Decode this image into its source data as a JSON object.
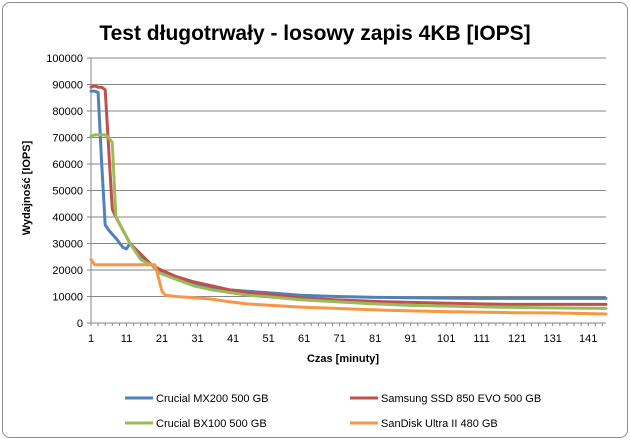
{
  "chart_data": {
    "type": "line",
    "title": "Test długotrwały - losowy zapis 4KB [IOPS]",
    "xlabel": "Czas [minuty]",
    "ylabel": "Wydajność [IOPS]",
    "xlim": [
      1,
      146
    ],
    "ylim": [
      0,
      100000
    ],
    "x_ticks": [
      "1",
      "11",
      "21",
      "31",
      "41",
      "51",
      "61",
      "71",
      "81",
      "91",
      "101",
      "111",
      "121",
      "131",
      "141"
    ],
    "y_ticks": [
      "0",
      "10000",
      "20000",
      "30000",
      "40000",
      "50000",
      "60000",
      "70000",
      "80000",
      "90000",
      "100000"
    ],
    "grid": "horizontal",
    "legend_position": "bottom",
    "series": [
      {
        "name": "Crucial MX200 500 GB",
        "color": "#4f81bd",
        "points": [
          [
            1,
            87500
          ],
          [
            2,
            87500
          ],
          [
            3,
            87000
          ],
          [
            4,
            60000
          ],
          [
            5,
            37000
          ],
          [
            6,
            35000
          ],
          [
            8,
            32000
          ],
          [
            10,
            28500
          ],
          [
            11,
            28000
          ],
          [
            12,
            30000
          ],
          [
            13,
            28500
          ],
          [
            15,
            25000
          ],
          [
            18,
            22000
          ],
          [
            20,
            20000
          ],
          [
            25,
            17000
          ],
          [
            30,
            15000
          ],
          [
            35,
            13500
          ],
          [
            40,
            12500
          ],
          [
            45,
            12000
          ],
          [
            50,
            11500
          ],
          [
            60,
            10500
          ],
          [
            70,
            10000
          ],
          [
            80,
            9700
          ],
          [
            90,
            9500
          ],
          [
            100,
            9400
          ],
          [
            110,
            9300
          ],
          [
            120,
            9300
          ],
          [
            130,
            9300
          ],
          [
            146,
            9300
          ]
        ]
      },
      {
        "name": "Samsung SSD 850 EVO 500 GB",
        "color": "#c0504d",
        "points": [
          [
            1,
            89000
          ],
          [
            2,
            89500
          ],
          [
            3,
            89000
          ],
          [
            4,
            89000
          ],
          [
            5,
            88000
          ],
          [
            6,
            65000
          ],
          [
            7,
            43000
          ],
          [
            8,
            40000
          ],
          [
            10,
            35000
          ],
          [
            12,
            30000
          ],
          [
            15,
            26000
          ],
          [
            18,
            22000
          ],
          [
            20,
            20500
          ],
          [
            25,
            17500
          ],
          [
            30,
            15500
          ],
          [
            35,
            14000
          ],
          [
            40,
            12500
          ],
          [
            45,
            11500
          ],
          [
            50,
            11000
          ],
          [
            60,
            9500
          ],
          [
            70,
            8700
          ],
          [
            80,
            8200
          ],
          [
            90,
            7800
          ],
          [
            100,
            7500
          ],
          [
            110,
            7200
          ],
          [
            120,
            7000
          ],
          [
            130,
            7000
          ],
          [
            146,
            7000
          ]
        ]
      },
      {
        "name": "Crucial BX100 500 GB",
        "color": "#9bbb59",
        "points": [
          [
            1,
            70500
          ],
          [
            2,
            71000
          ],
          [
            3,
            71000
          ],
          [
            4,
            71000
          ],
          [
            5,
            71000
          ],
          [
            6,
            70000
          ],
          [
            7,
            68000
          ],
          [
            8,
            40000
          ],
          [
            10,
            35000
          ],
          [
            12,
            30000
          ],
          [
            15,
            24000
          ],
          [
            17,
            22500
          ],
          [
            18,
            22000
          ],
          [
            20,
            19000
          ],
          [
            25,
            16500
          ],
          [
            30,
            14000
          ],
          [
            35,
            12500
          ],
          [
            40,
            11500
          ],
          [
            45,
            10500
          ],
          [
            50,
            10000
          ],
          [
            60,
            8800
          ],
          [
            70,
            8000
          ],
          [
            80,
            7300
          ],
          [
            90,
            6700
          ],
          [
            100,
            6400
          ],
          [
            110,
            6100
          ],
          [
            120,
            5900
          ],
          [
            130,
            5700
          ],
          [
            146,
            5500
          ]
        ]
      },
      {
        "name": "SanDisk Ultra II 480 GB",
        "color": "#f79646",
        "points": [
          [
            1,
            24000
          ],
          [
            2,
            22000
          ],
          [
            5,
            22000
          ],
          [
            10,
            22000
          ],
          [
            15,
            22000
          ],
          [
            19,
            22000
          ],
          [
            20,
            17000
          ],
          [
            21,
            12000
          ],
          [
            22,
            10500
          ],
          [
            25,
            10000
          ],
          [
            30,
            9500
          ],
          [
            35,
            9000
          ],
          [
            40,
            8000
          ],
          [
            45,
            7200
          ],
          [
            50,
            6800
          ],
          [
            60,
            6000
          ],
          [
            70,
            5500
          ],
          [
            80,
            5000
          ],
          [
            90,
            4600
          ],
          [
            100,
            4300
          ],
          [
            110,
            4100
          ],
          [
            120,
            3900
          ],
          [
            130,
            3800
          ],
          [
            140,
            3600
          ],
          [
            146,
            3400
          ]
        ]
      }
    ]
  }
}
